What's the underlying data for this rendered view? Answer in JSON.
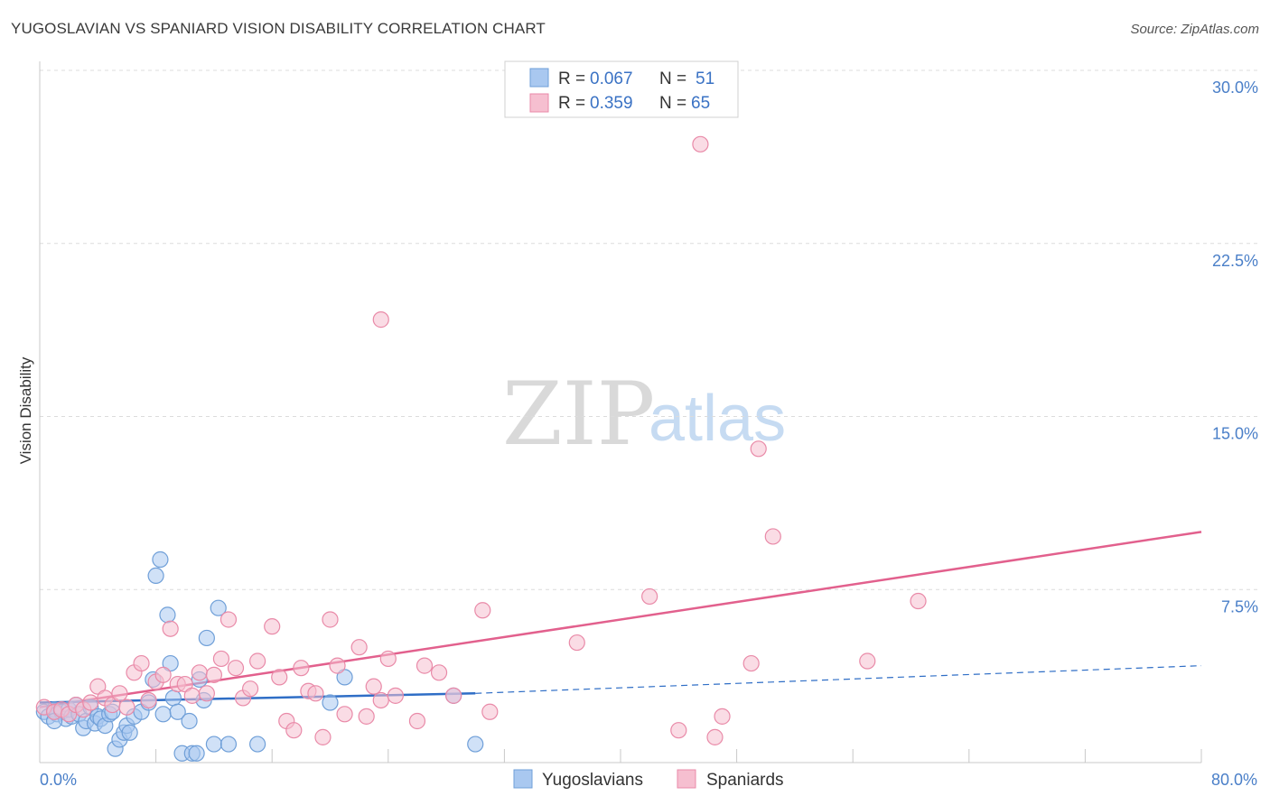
{
  "header": {
    "title": "YUGOSLAVIAN VS SPANIARD VISION DISABILITY CORRELATION CHART",
    "source": "Source: ZipAtlas.com"
  },
  "watermark": {
    "zip": "ZIP",
    "atlas": "atlas"
  },
  "colors": {
    "blue_fill": "#a9c8f0",
    "blue_stroke": "#6f9fd8",
    "blue_line": "#2f6ec6",
    "pink_fill": "#f6bfd0",
    "pink_stroke": "#e98aa8",
    "pink_line": "#e2608d",
    "axis_text": "#4a7fc8",
    "grid": "#dcdcdc"
  },
  "legend": {
    "r_label": "R =",
    "n_label": "N =",
    "rows": [
      {
        "series": "Yugoslavians",
        "r": "0.067",
        "n": "51"
      },
      {
        "series": "Spaniards",
        "r": "0.359",
        "n": "65"
      }
    ]
  },
  "chart_data": {
    "type": "scatter",
    "title": "YUGOSLAVIAN VS SPANIARD VISION DISABILITY CORRELATION CHART",
    "xlabel": "",
    "ylabel": "Vision Disability",
    "xlim": [
      0,
      80
    ],
    "ylim": [
      0,
      30
    ],
    "x_tick_labels": [
      "0.0%",
      "80.0%"
    ],
    "y_ticks": [
      7.5,
      15.0,
      22.5,
      30.0
    ],
    "y_tick_labels": [
      "7.5%",
      "15.0%",
      "22.5%",
      "30.0%"
    ],
    "grid": true,
    "series": [
      {
        "name": "Yugoslavians",
        "color": "#6f9fd8",
        "trend": {
          "x": [
            0,
            30
          ],
          "y": [
            2.6,
            3.0
          ],
          "dashed_extension_to": [
            80,
            4.2
          ]
        },
        "points": [
          [
            0.3,
            2.2
          ],
          [
            0.6,
            2.0
          ],
          [
            1.0,
            2.3
          ],
          [
            1.2,
            2.1
          ],
          [
            1.5,
            2.2
          ],
          [
            1.8,
            1.9
          ],
          [
            2.0,
            2.3
          ],
          [
            2.2,
            2.0
          ],
          [
            2.5,
            2.5
          ],
          [
            2.7,
            2.1
          ],
          [
            3.0,
            1.5
          ],
          [
            3.2,
            1.8
          ],
          [
            3.5,
            2.4
          ],
          [
            3.8,
            1.7
          ],
          [
            4.0,
            2.0
          ],
          [
            4.2,
            1.9
          ],
          [
            4.5,
            1.6
          ],
          [
            4.8,
            2.1
          ],
          [
            5.0,
            2.2
          ],
          [
            5.2,
            0.6
          ],
          [
            5.5,
            1.0
          ],
          [
            5.8,
            1.3
          ],
          [
            6.0,
            1.6
          ],
          [
            6.2,
            1.3
          ],
          [
            6.5,
            2.0
          ],
          [
            7.0,
            2.2
          ],
          [
            7.5,
            2.6
          ],
          [
            7.8,
            3.6
          ],
          [
            8.0,
            8.1
          ],
          [
            8.3,
            8.8
          ],
          [
            8.5,
            2.1
          ],
          [
            8.8,
            6.4
          ],
          [
            9.0,
            4.3
          ],
          [
            9.2,
            2.8
          ],
          [
            9.5,
            2.2
          ],
          [
            9.8,
            0.4
          ],
          [
            10.3,
            1.8
          ],
          [
            10.5,
            0.4
          ],
          [
            10.8,
            0.4
          ],
          [
            11.0,
            3.6
          ],
          [
            11.3,
            2.7
          ],
          [
            11.5,
            5.4
          ],
          [
            12.0,
            0.8
          ],
          [
            12.3,
            6.7
          ],
          [
            13.0,
            0.8
          ],
          [
            15.0,
            0.8
          ],
          [
            20.0,
            2.6
          ],
          [
            21.0,
            3.7
          ],
          [
            28.5,
            2.9
          ],
          [
            30.0,
            0.8
          ],
          [
            1.0,
            1.8
          ]
        ]
      },
      {
        "name": "Spaniards",
        "color": "#e98aa8",
        "trend": {
          "x": [
            0,
            80
          ],
          "y": [
            2.4,
            10.0
          ]
        },
        "points": [
          [
            0.3,
            2.4
          ],
          [
            1.0,
            2.2
          ],
          [
            1.5,
            2.3
          ],
          [
            2.0,
            2.1
          ],
          [
            2.5,
            2.5
          ],
          [
            3.0,
            2.3
          ],
          [
            3.5,
            2.6
          ],
          [
            4.0,
            3.3
          ],
          [
            4.5,
            2.8
          ],
          [
            5.0,
            2.5
          ],
          [
            5.5,
            3.0
          ],
          [
            6.0,
            2.4
          ],
          [
            6.5,
            3.9
          ],
          [
            7.0,
            4.3
          ],
          [
            7.5,
            2.7
          ],
          [
            8.0,
            3.5
          ],
          [
            8.5,
            3.8
          ],
          [
            9.0,
            5.8
          ],
          [
            9.5,
            3.4
          ],
          [
            10.0,
            3.4
          ],
          [
            10.5,
            2.9
          ],
          [
            11.0,
            3.9
          ],
          [
            11.5,
            3.0
          ],
          [
            12.0,
            3.8
          ],
          [
            12.5,
            4.5
          ],
          [
            13.0,
            6.2
          ],
          [
            13.5,
            4.1
          ],
          [
            14.0,
            2.8
          ],
          [
            14.5,
            3.2
          ],
          [
            15.0,
            4.4
          ],
          [
            16.0,
            5.9
          ],
          [
            16.5,
            3.7
          ],
          [
            17.0,
            1.8
          ],
          [
            17.5,
            1.4
          ],
          [
            18.0,
            4.1
          ],
          [
            18.5,
            3.1
          ],
          [
            19.0,
            3.0
          ],
          [
            19.5,
            1.1
          ],
          [
            20.0,
            6.2
          ],
          [
            20.5,
            4.2
          ],
          [
            21.0,
            2.1
          ],
          [
            22.0,
            5.0
          ],
          [
            22.5,
            2.0
          ],
          [
            23.0,
            3.3
          ],
          [
            23.5,
            2.7
          ],
          [
            24.0,
            4.5
          ],
          [
            24.5,
            2.9
          ],
          [
            26.0,
            1.8
          ],
          [
            26.5,
            4.2
          ],
          [
            27.5,
            3.9
          ],
          [
            23.5,
            19.2
          ],
          [
            28.5,
            2.9
          ],
          [
            30.5,
            6.6
          ],
          [
            31.0,
            2.2
          ],
          [
            37.0,
            5.2
          ],
          [
            42.0,
            7.2
          ],
          [
            44.0,
            1.4
          ],
          [
            45.5,
            26.8
          ],
          [
            46.5,
            1.1
          ],
          [
            47.0,
            2.0
          ],
          [
            49.0,
            4.3
          ],
          [
            49.5,
            13.6
          ],
          [
            50.5,
            9.8
          ],
          [
            57.0,
            4.4
          ],
          [
            60.5,
            7.0
          ]
        ]
      }
    ]
  },
  "bottom_legend": [
    "Yugoslavians",
    "Spaniards"
  ]
}
